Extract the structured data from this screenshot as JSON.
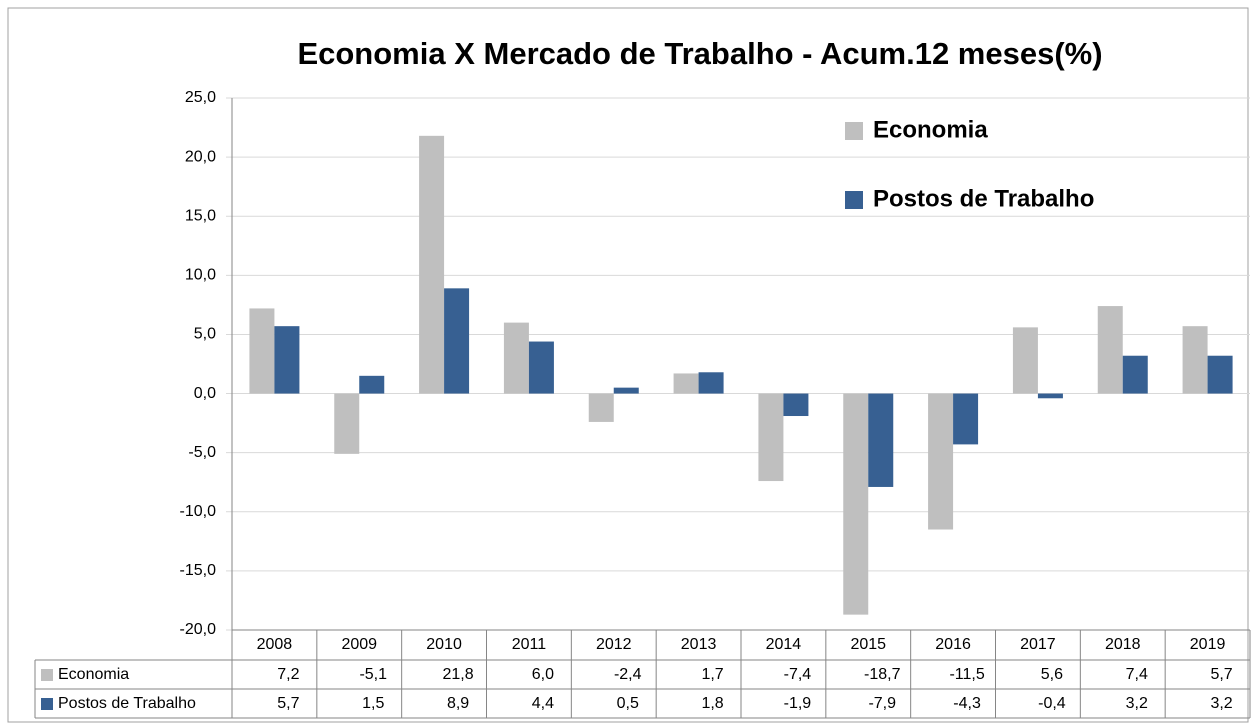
{
  "chart_data": {
    "type": "bar",
    "title": "Economia X Mercado de Trabalho - Acum.12 meses(%)",
    "categories": [
      "2008",
      "2009",
      "2010",
      "2011",
      "2012",
      "2013",
      "2014",
      "2015",
      "2016",
      "2017",
      "2018",
      "2019"
    ],
    "series": [
      {
        "name": "Economia",
        "color": "#bfbfbf",
        "values": [
          7.2,
          -5.1,
          21.8,
          6.0,
          -2.4,
          1.7,
          -7.4,
          -18.7,
          -11.5,
          5.6,
          7.4,
          5.7
        ],
        "value_labels": [
          "7,2",
          "-5,1",
          "21,8",
          "6,0",
          "-2,4",
          "1,7",
          "-7,4",
          "-18,7",
          "-11,5",
          "5,6",
          "7,4",
          "5,7"
        ]
      },
      {
        "name": "Postos de Trabalho",
        "color": "#376092",
        "values": [
          5.7,
          1.5,
          8.9,
          4.4,
          0.5,
          1.8,
          -1.9,
          -7.9,
          -4.3,
          -0.4,
          3.2,
          3.2
        ],
        "value_labels": [
          "5,7",
          "1,5",
          "8,9",
          "4,4",
          "0,5",
          "1,8",
          "-1,9",
          "-7,9",
          "-4,3",
          "-0,4",
          "3,2",
          "3,2"
        ]
      }
    ],
    "ylim": [
      -20,
      25
    ],
    "yticks": [
      {
        "value": -20,
        "label": "-20,0"
      },
      {
        "value": -15,
        "label": "-15,0"
      },
      {
        "value": -10,
        "label": "-10,0"
      },
      {
        "value": -5,
        "label": "-5,0"
      },
      {
        "value": 0,
        "label": "0,0"
      },
      {
        "value": 5,
        "label": "5,0"
      },
      {
        "value": 10,
        "label": "10,0"
      },
      {
        "value": 15,
        "label": "15,0"
      },
      {
        "value": 20,
        "label": "20,0"
      },
      {
        "value": 25,
        "label": "25,0"
      }
    ],
    "grid": true,
    "legend": "upper right",
    "data_table": true
  }
}
